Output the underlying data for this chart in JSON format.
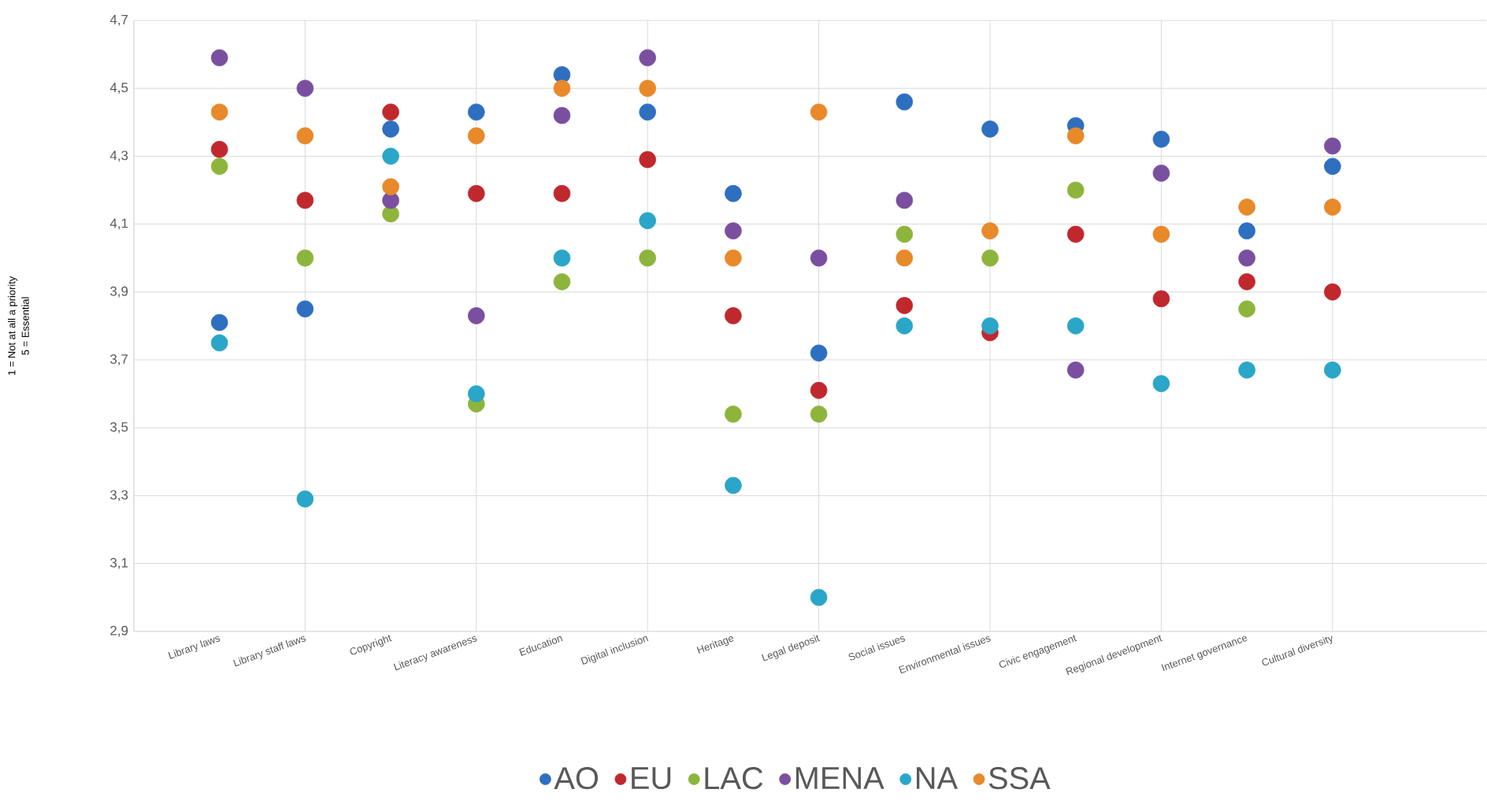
{
  "chart_data": {
    "type": "scatter",
    "annotations": [
      "1 = Not at all a priority",
      "5 = Essential"
    ],
    "categories": [
      "Library laws",
      "Library staff laws",
      "Copyright",
      "Literacy awareness",
      "Education",
      "Digital inclusion",
      "Heritage",
      "Legal deposit",
      "Social issues",
      "Environmental issues",
      "Civic engagement",
      "Regional development",
      "Internet governance",
      "Cultural diversity"
    ],
    "series": [
      {
        "name": "AO",
        "color": "#2e6fc0",
        "values": [
          3.81,
          3.85,
          4.38,
          4.43,
          4.54,
          4.43,
          4.19,
          3.72,
          4.46,
          4.38,
          4.39,
          4.35,
          4.08,
          4.27
        ]
      },
      {
        "name": "EU",
        "color": "#c0282e",
        "values": [
          4.32,
          4.17,
          4.43,
          4.19,
          4.19,
          4.29,
          3.83,
          3.61,
          3.86,
          3.78,
          4.07,
          3.88,
          3.93,
          3.9
        ]
      },
      {
        "name": "LAC",
        "color": "#8db53c",
        "values": [
          4.27,
          4.0,
          4.13,
          3.57,
          3.93,
          4.0,
          3.54,
          3.54,
          4.07,
          4.0,
          4.2,
          null,
          3.85,
          null
        ]
      },
      {
        "name": "MENA",
        "color": "#7a4fa0",
        "values": [
          4.59,
          4.5,
          4.17,
          3.83,
          4.42,
          4.59,
          4.08,
          4.0,
          4.17,
          null,
          3.67,
          4.25,
          4.0,
          4.33
        ]
      },
      {
        "name": "NA",
        "color": "#2aa6c8",
        "values": [
          3.75,
          3.29,
          4.3,
          3.6,
          4.0,
          4.11,
          3.33,
          3.0,
          3.8,
          3.8,
          3.8,
          3.63,
          3.67,
          3.67
        ]
      },
      {
        "name": "SSA",
        "color": "#e8892a",
        "values": [
          4.43,
          4.36,
          4.21,
          4.36,
          4.5,
          4.5,
          4.0,
          4.43,
          4.0,
          4.08,
          4.36,
          4.07,
          4.15,
          4.15
        ]
      }
    ],
    "ylim": [
      2.9,
      4.7
    ],
    "yticks": [
      {
        "value": 2.9,
        "label": "2,9"
      },
      {
        "value": 3.1,
        "label": "3,1"
      },
      {
        "value": 3.3,
        "label": "3,3"
      },
      {
        "value": 3.5,
        "label": "3,5"
      },
      {
        "value": 3.7,
        "label": "3,7"
      },
      {
        "value": 3.9,
        "label": "3,9"
      },
      {
        "value": 4.1,
        "label": "4,1"
      },
      {
        "value": 4.3,
        "label": "4,3"
      },
      {
        "value": 4.5,
        "label": "4,5"
      },
      {
        "value": 4.7,
        "label": "4,7"
      }
    ],
    "grid": true,
    "legend": "bottom",
    "marker": "circle"
  }
}
